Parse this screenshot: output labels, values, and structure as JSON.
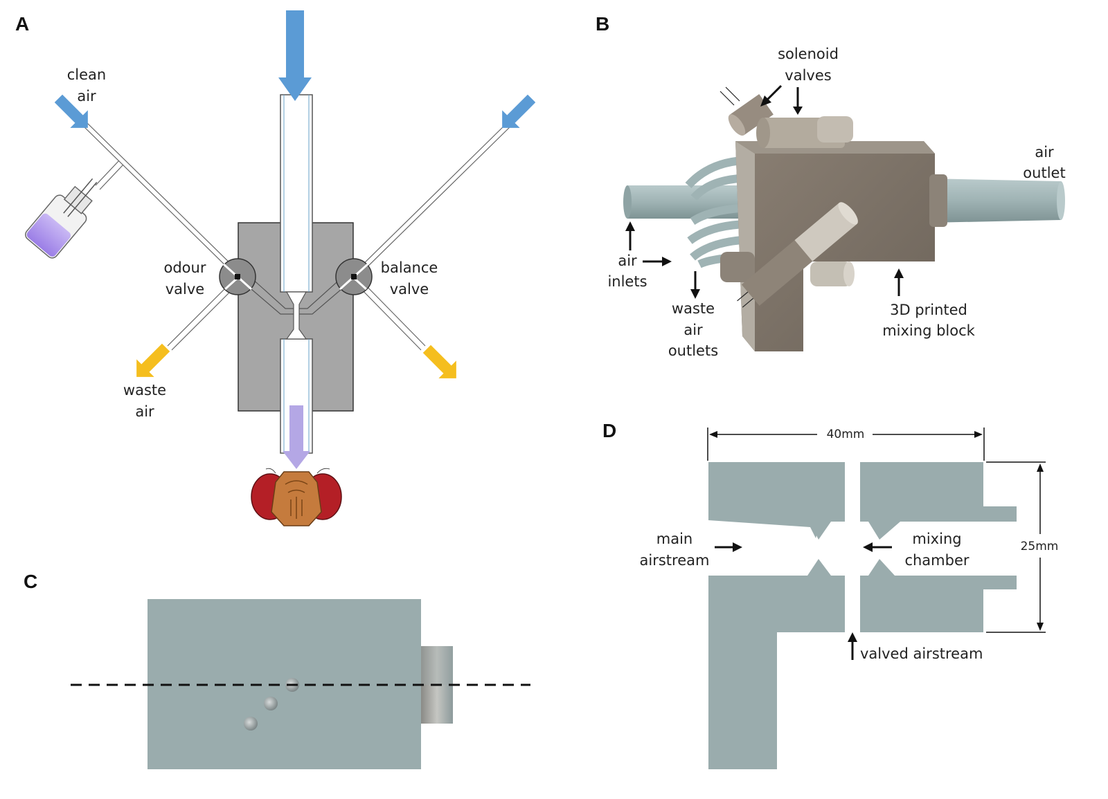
{
  "panels": {
    "a": {
      "letter": "A",
      "labels": {
        "clean_air_1": "clean",
        "clean_air_2": "air",
        "odour_1": "odour",
        "odour_2": "valve",
        "balance_1": "balance",
        "balance_2": "valve",
        "waste_1": "waste",
        "waste_2": "air"
      }
    },
    "b": {
      "letter": "B",
      "labels": {
        "solenoid_1": "solenoid",
        "solenoid_2": "valves",
        "air_outlet_1": "air",
        "air_outlet_2": "outlet",
        "air_inlets_1": "air",
        "air_inlets_2": "inlets",
        "waste_outlets_1": "waste",
        "waste_outlets_2": "air",
        "waste_outlets_3": "outlets",
        "block_1": "3D printed",
        "block_2": "mixing block"
      }
    },
    "c": {
      "letter": "C"
    },
    "d": {
      "letter": "D",
      "labels": {
        "width": "40mm",
        "height": "25mm",
        "main_1": "main",
        "main_2": "airstream",
        "mixing_1": "mixing",
        "mixing_2": "chamber",
        "valved": "valved airstream"
      }
    }
  },
  "colors": {
    "clean_air_arrow": "#5b9bd5",
    "waste_air_arrow": "#f5be1e",
    "odour_arrow": "#b4a7e5",
    "block_gray": "#a6a6a6",
    "cad_gray": "#9aacad",
    "printed_block": "#7d7368",
    "tubing": "#9fb3b4"
  }
}
